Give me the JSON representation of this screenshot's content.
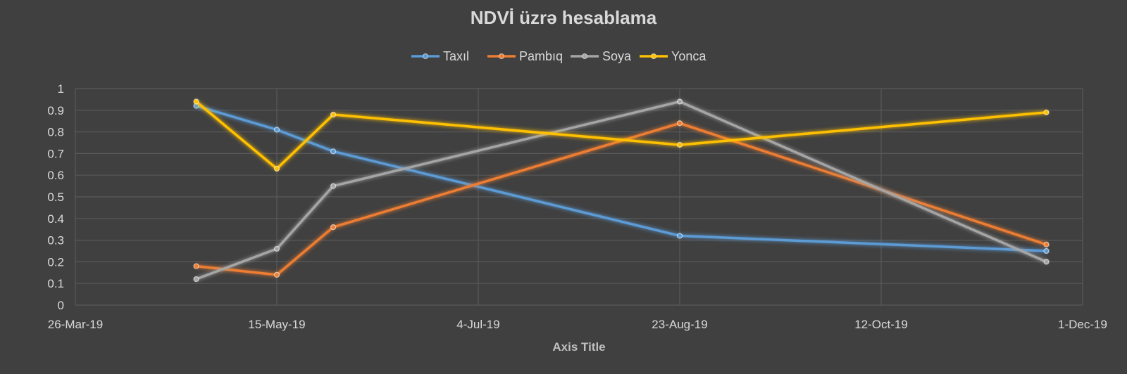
{
  "chart_data": {
    "type": "line",
    "title": "NDVİ üzrə hesablama",
    "xlabel": "Axis Title",
    "ylabel": "",
    "x_axis": {
      "type": "date",
      "min": "2019-03-26",
      "max": "2019-12-01",
      "ticks": [
        "2019-03-26",
        "2019-05-15",
        "2019-07-04",
        "2019-08-23",
        "2019-10-12",
        "2019-12-01"
      ],
      "tick_labels": [
        "26-Mar-19",
        "15-May-19",
        "4-Jul-19",
        "23-Aug-19",
        "12-Oct-19",
        "1-Dec-19"
      ]
    },
    "y_axis": {
      "min": 0,
      "max": 1,
      "ticks": [
        0,
        0.1,
        0.2,
        0.3,
        0.4,
        0.5,
        0.6,
        0.7,
        0.8,
        0.9,
        1
      ],
      "tick_labels": [
        "0",
        "0.1",
        "0.2",
        "0.3",
        "0.4",
        "0.5",
        "0.6",
        "0.7",
        "0.8",
        "0.9",
        "1"
      ]
    },
    "grid": true,
    "legend_position": "top",
    "series": [
      {
        "name": "Taxıl",
        "color": "#5b9bd5",
        "points": [
          {
            "x": "2019-04-25",
            "y": 0.92
          },
          {
            "x": "2019-05-15",
            "y": 0.81
          },
          {
            "x": "2019-05-29",
            "y": 0.71
          },
          {
            "x": "2019-08-23",
            "y": 0.32
          },
          {
            "x": "2019-11-22",
            "y": 0.25
          }
        ]
      },
      {
        "name": "Pambıq",
        "color": "#ed7d31",
        "points": [
          {
            "x": "2019-04-25",
            "y": 0.18
          },
          {
            "x": "2019-05-15",
            "y": 0.14
          },
          {
            "x": "2019-05-29",
            "y": 0.36
          },
          {
            "x": "2019-08-23",
            "y": 0.84
          },
          {
            "x": "2019-11-22",
            "y": 0.28
          }
        ]
      },
      {
        "name": "Soya",
        "color": "#a5a5a5",
        "points": [
          {
            "x": "2019-04-25",
            "y": 0.12
          },
          {
            "x": "2019-05-15",
            "y": 0.26
          },
          {
            "x": "2019-05-29",
            "y": 0.55
          },
          {
            "x": "2019-08-23",
            "y": 0.94
          },
          {
            "x": "2019-11-22",
            "y": 0.2
          }
        ]
      },
      {
        "name": "Yonca",
        "color": "#ffc000",
        "points": [
          {
            "x": "2019-04-25",
            "y": 0.94
          },
          {
            "x": "2019-05-15",
            "y": 0.63
          },
          {
            "x": "2019-05-29",
            "y": 0.88
          },
          {
            "x": "2019-08-23",
            "y": 0.74
          },
          {
            "x": "2019-11-22",
            "y": 0.89
          }
        ]
      }
    ],
    "colors": {
      "background": "#404040",
      "gridline": "#595959",
      "text": "#d9d9d9"
    }
  }
}
